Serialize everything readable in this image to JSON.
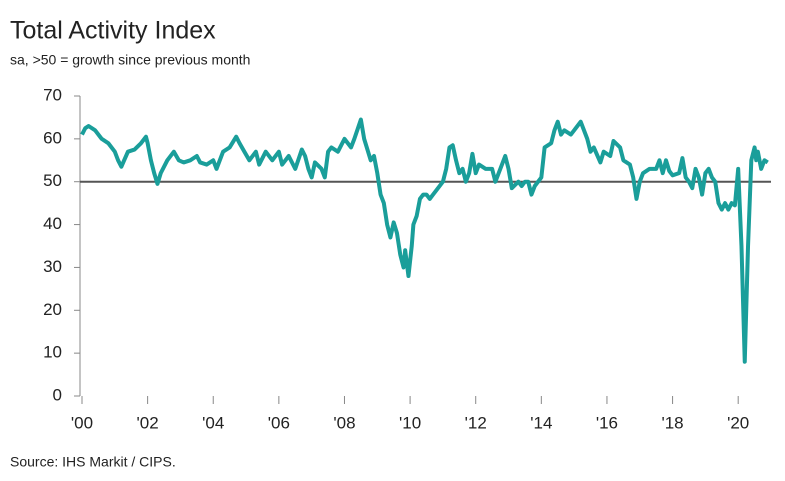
{
  "chart_data": {
    "type": "line",
    "title": "Total Activity Index",
    "subtitle": "sa, >50 = growth since previous month",
    "source": "Source: IHS Markit / CIPS.",
    "x": [
      2000.0,
      2000.1,
      2000.2,
      2000.4,
      2000.6,
      2000.8,
      2001.0,
      2001.1,
      2001.2,
      2001.4,
      2001.6,
      2001.8,
      2001.95,
      2002.0,
      2002.1,
      2002.2,
      2002.3,
      2002.4,
      2002.6,
      2002.8,
      2002.95,
      2003.1,
      2003.3,
      2003.5,
      2003.6,
      2003.8,
      2004.0,
      2004.1,
      2004.3,
      2004.5,
      2004.7,
      2004.8,
      2004.95,
      2005.1,
      2005.3,
      2005.4,
      2005.6,
      2005.8,
      2006.0,
      2006.1,
      2006.3,
      2006.5,
      2006.7,
      2006.8,
      2006.9,
      2007.0,
      2007.1,
      2007.3,
      2007.4,
      2007.5,
      2007.6,
      2007.8,
      2008.0,
      2008.2,
      2008.3,
      2008.5,
      2008.6,
      2008.8,
      2008.9,
      2009.0,
      2009.1,
      2009.2,
      2009.3,
      2009.4,
      2009.5,
      2009.6,
      2009.7,
      2009.8,
      2009.85,
      2009.95,
      2010.05,
      2010.1,
      2010.2,
      2010.3,
      2010.4,
      2010.5,
      2010.6,
      2010.7,
      2010.8,
      2011.0,
      2011.1,
      2011.2,
      2011.3,
      2011.4,
      2011.5,
      2011.6,
      2011.7,
      2011.8,
      2011.9,
      2012.0,
      2012.1,
      2012.3,
      2012.5,
      2012.6,
      2012.8,
      2012.9,
      2013.0,
      2013.1,
      2013.3,
      2013.4,
      2013.5,
      2013.6,
      2013.7,
      2013.8,
      2014.0,
      2014.1,
      2014.3,
      2014.4,
      2014.5,
      2014.6,
      2014.7,
      2014.9,
      2015.0,
      2015.2,
      2015.4,
      2015.5,
      2015.6,
      2015.8,
      2015.9,
      2016.1,
      2016.2,
      2016.4,
      2016.5,
      2016.7,
      2016.8,
      2016.9,
      2017.0,
      2017.1,
      2017.3,
      2017.5,
      2017.6,
      2017.7,
      2017.8,
      2017.9,
      2018.0,
      2018.2,
      2018.3,
      2018.4,
      2018.5,
      2018.6,
      2018.7,
      2018.8,
      2018.9,
      2019.0,
      2019.1,
      2019.2,
      2019.3,
      2019.4,
      2019.5,
      2019.6,
      2019.7,
      2019.8,
      2019.9,
      2020.0,
      2020.1,
      2020.2,
      2020.3,
      2020.4,
      2020.5,
      2020.55,
      2020.6,
      2020.7,
      2020.8,
      2020.9
    ],
    "series": [
      {
        "name": "Total Activity Index",
        "color": "#1a9e9a",
        "values": [
          61,
          62.5,
          63,
          62,
          60,
          59,
          57,
          55,
          53.5,
          57,
          57.5,
          59,
          60.5,
          59,
          55,
          52,
          49.5,
          52,
          55,
          57,
          55,
          54.5,
          55,
          56,
          54.5,
          54,
          55,
          53,
          57,
          58,
          60.5,
          59,
          57,
          55,
          57,
          54,
          57,
          55,
          57,
          54,
          56,
          53,
          57.5,
          56,
          53,
          51,
          54.5,
          53,
          51,
          57,
          58,
          57,
          60,
          58,
          60,
          64.5,
          60,
          55,
          56,
          52,
          47,
          45,
          40,
          37,
          40.5,
          38,
          33,
          30,
          34,
          28,
          35,
          40,
          42,
          46,
          47,
          47,
          46,
          47,
          48,
          50,
          53,
          58,
          58.5,
          55,
          52,
          53,
          50,
          52,
          56.5,
          52,
          54,
          53,
          53,
          50,
          54,
          56,
          53,
          48.5,
          50,
          49,
          50,
          50,
          47,
          49,
          51,
          58,
          59,
          62,
          64,
          61,
          62,
          61,
          62,
          64,
          60,
          57,
          58,
          54.5,
          57,
          56,
          59.5,
          58,
          55,
          54,
          51,
          46,
          50,
          52,
          53,
          53,
          55,
          52,
          55,
          52.5,
          51.5,
          52,
          55.5,
          51,
          50,
          48.5,
          53,
          51,
          47,
          52,
          53,
          51,
          50,
          45,
          43.5,
          45,
          43.5,
          45,
          44.5,
          53,
          35,
          8,
          35,
          55,
          58,
          55,
          57,
          53,
          55,
          54.5
        ]
      }
    ],
    "xlim": [
      2000,
      2021
    ],
    "ylim": [
      0,
      70
    ],
    "xticks": [
      {
        "value": 2000,
        "label": "'00"
      },
      {
        "value": 2002,
        "label": "'02"
      },
      {
        "value": 2004,
        "label": "'04"
      },
      {
        "value": 2006,
        "label": "'06"
      },
      {
        "value": 2008,
        "label": "'08"
      },
      {
        "value": 2010,
        "label": "'10"
      },
      {
        "value": 2012,
        "label": "'12"
      },
      {
        "value": 2014,
        "label": "'14"
      },
      {
        "value": 2016,
        "label": "'16"
      },
      {
        "value": 2018,
        "label": "'18"
      },
      {
        "value": 2020,
        "label": "'20"
      }
    ],
    "yticks": [
      0,
      10,
      20,
      30,
      40,
      50,
      60,
      70
    ],
    "reference_line": 50
  }
}
